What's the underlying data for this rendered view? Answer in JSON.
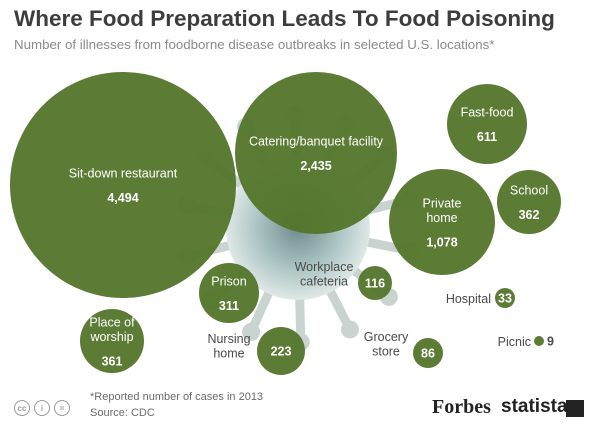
{
  "title": "Where Food Preparation Leads To Food Poisoning",
  "subtitle": "Number of illnesses from foodborne disease outbreaks in selected U.S. locations*",
  "chart_data": {
    "type": "bubble",
    "color": "#53752a",
    "categories": [
      "Sit-down restaurant",
      "Catering/banquet facility",
      "Private home",
      "Fast-food",
      "School",
      "Place of worship",
      "Prison",
      "Nursing home",
      "Workplace cafeteria",
      "Grocery store",
      "Hospital",
      "Picnic"
    ],
    "values": [
      4494,
      2435,
      1078,
      611,
      362,
      361,
      311,
      223,
      116,
      86,
      33,
      9
    ],
    "items": [
      {
        "name": "Sit-down restaurant",
        "lines": [
          "Sit-down restaurant"
        ],
        "value": 4494,
        "value_label": "4,494"
      },
      {
        "name": "Catering/banquet facility",
        "lines": [
          "Catering/banquet facility"
        ],
        "value": 2435,
        "value_label": "2,435"
      },
      {
        "name": "Private home",
        "lines": [
          "Private",
          "home"
        ],
        "value": 1078,
        "value_label": "1,078"
      },
      {
        "name": "Fast-food",
        "lines": [
          "Fast-food"
        ],
        "value": 611,
        "value_label": "611"
      },
      {
        "name": "School",
        "lines": [
          "School"
        ],
        "value": 362,
        "value_label": "362"
      },
      {
        "name": "Place of worship",
        "lines": [
          "Place of",
          "worship"
        ],
        "value": 361,
        "value_label": "361"
      },
      {
        "name": "Prison",
        "lines": [
          "Prison"
        ],
        "value": 311,
        "value_label": "311"
      },
      {
        "name": "Nursing home",
        "lines": [
          "Nursing",
          "home"
        ],
        "value": 223,
        "value_label": "223"
      },
      {
        "name": "Workplace cafeteria",
        "lines": [
          "Workplace",
          "cafeteria"
        ],
        "value": 116,
        "value_label": "116"
      },
      {
        "name": "Grocery store",
        "lines": [
          "Grocery",
          "store"
        ],
        "value": 86,
        "value_label": "86"
      },
      {
        "name": "Hospital",
        "lines": [
          "Hospital"
        ],
        "value": 33,
        "value_label": "33"
      },
      {
        "name": "Picnic",
        "lines": [
          "Picnic"
        ],
        "value": 9,
        "value_label": "9"
      }
    ]
  },
  "footnote": "*Reported number of cases in 2013",
  "source": "Source: CDC",
  "brand": {
    "forbes": "Forbes",
    "statista": "statista"
  },
  "license_icons": [
    "cc-icon",
    "by-icon",
    "nd-icon"
  ]
}
